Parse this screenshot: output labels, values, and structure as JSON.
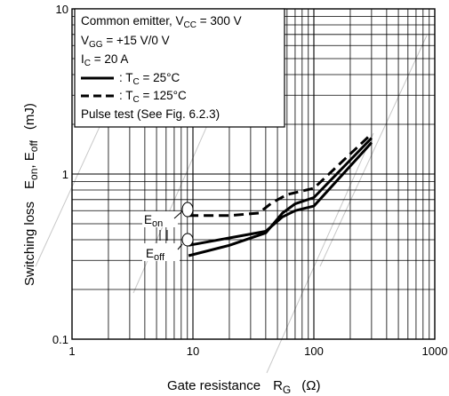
{
  "chart_data": {
    "type": "line",
    "x_scale": "log",
    "y_scale": "log",
    "xlim": [
      1,
      1000
    ],
    "ylim": [
      0.1,
      10
    ],
    "grid": true,
    "x_ticks": [
      "1",
      "10",
      "100",
      "1000"
    ],
    "y_ticks": [
      "0.1",
      "1",
      "10"
    ],
    "xlabel": {
      "main": "Gate resistance",
      "sym": "R",
      "sub": "G",
      "unit": "(Ω)"
    },
    "ylabel": {
      "main": "Switching loss",
      "s1": "E",
      "sub1": "on",
      "sep": ", ",
      "s2": "E",
      "sub2": "off",
      "unit": "(mJ)"
    },
    "legend": {
      "line1": {
        "a": "Common emitter, V",
        "sub": "CC",
        "b": " = 300 V"
      },
      "line2": {
        "a": "V",
        "sub": "GG",
        "b": " = +15 V/0 V"
      },
      "line3": {
        "a": "I",
        "sub": "C",
        "b": " = 20 A"
      },
      "line4": {
        "a": ": T",
        "sub": "C",
        "b": " = 25°C"
      },
      "line5": {
        "a": ": T",
        "sub": "C",
        "b": " = 125°C"
      },
      "line6": "Pulse test (See Fig. 6.2.3)"
    },
    "annotations": {
      "eon": {
        "s": "E",
        "sub": "on"
      },
      "eoff": {
        "s": "E",
        "sub": "off"
      }
    },
    "series": [
      {
        "curve": "Eon",
        "style": "solid",
        "legend": "25°C",
        "x": [
          9.2,
          20,
          40,
          55,
          70,
          100,
          300
        ],
        "y": [
          0.37,
          0.41,
          0.45,
          0.55,
          0.6,
          0.64,
          1.55
        ]
      },
      {
        "curve": "Eon",
        "style": "dashed",
        "legend": "125°C",
        "x": [
          9.2,
          20,
          35,
          45,
          60,
          100,
          300
        ],
        "y": [
          0.56,
          0.56,
          0.58,
          0.67,
          0.75,
          0.82,
          1.75
        ]
      },
      {
        "curve": "Eoff",
        "style": "solid",
        "legend": "25°C",
        "x": [
          9.2,
          20,
          40,
          55,
          70,
          100,
          300
        ],
        "y": [
          0.32,
          0.37,
          0.44,
          0.58,
          0.66,
          0.72,
          1.65
        ]
      }
    ]
  }
}
